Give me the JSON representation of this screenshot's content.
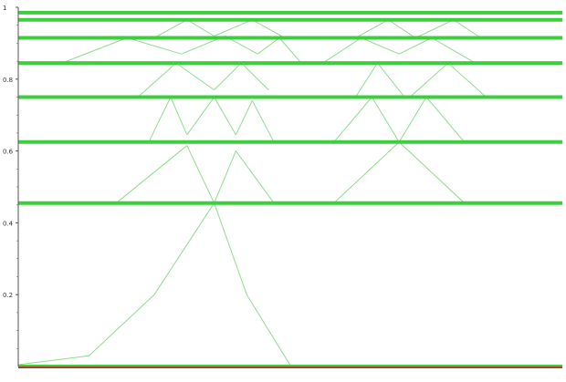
{
  "chart_data": {
    "type": "line",
    "title": "",
    "xlabel": "",
    "ylabel": "",
    "ylim": [
      0,
      1
    ],
    "xlim": [
      0,
      1
    ],
    "y_ticks": [
      {
        "value": 1,
        "label": "1"
      },
      {
        "value": 0.8,
        "label": "0.8"
      },
      {
        "value": 0.6,
        "label": "0.6"
      },
      {
        "value": 0.4,
        "label": "0.4"
      },
      {
        "value": 0.2,
        "label": "0.2"
      }
    ],
    "grid": false,
    "legend": "none",
    "colors": {
      "plateau": "#3ccf3c",
      "curve": "#8fdc8f",
      "baseline": "#b43c28",
      "axis": "#555555"
    },
    "plateau_levels": [
      0.455,
      0.625,
      0.75,
      0.845,
      0.915,
      0.965,
      0.985
    ],
    "peak_series": [
      {
        "points": [
          [
            0,
            0.005
          ],
          [
            0.13,
            0.03
          ],
          [
            0.25,
            0.2
          ],
          [
            0.36,
            0.455
          ],
          [
            0.42,
            0.2
          ],
          [
            0.5,
            0.003
          ],
          [
            1,
            0.003
          ]
        ]
      },
      {
        "points": [
          [
            0.18,
            0.455
          ],
          [
            0.31,
            0.615
          ],
          [
            0.36,
            0.455
          ]
        ]
      },
      {
        "points": [
          [
            0.36,
            0.455
          ],
          [
            0.4,
            0.6
          ],
          [
            0.47,
            0.455
          ]
        ]
      },
      {
        "points": [
          [
            0.58,
            0.455
          ],
          [
            0.7,
            0.625
          ],
          [
            0.82,
            0.455
          ]
        ]
      },
      {
        "points": [
          [
            0.24,
            0.625
          ],
          [
            0.28,
            0.75
          ],
          [
            0.31,
            0.645
          ]
        ]
      },
      {
        "points": [
          [
            0.31,
            0.645
          ],
          [
            0.36,
            0.75
          ],
          [
            0.4,
            0.645
          ]
        ]
      },
      {
        "points": [
          [
            0.4,
            0.645
          ],
          [
            0.43,
            0.74
          ],
          [
            0.47,
            0.625
          ]
        ]
      },
      {
        "points": [
          [
            0.58,
            0.625
          ],
          [
            0.65,
            0.75
          ],
          [
            0.7,
            0.625
          ]
        ]
      },
      {
        "points": [
          [
            0.7,
            0.625
          ],
          [
            0.75,
            0.75
          ],
          [
            0.82,
            0.625
          ]
        ]
      },
      {
        "points": [
          [
            0.22,
            0.75
          ],
          [
            0.29,
            0.845
          ],
          [
            0.36,
            0.77
          ]
        ]
      },
      {
        "points": [
          [
            0.36,
            0.77
          ],
          [
            0.41,
            0.845
          ],
          [
            0.46,
            0.77
          ]
        ]
      },
      {
        "points": [
          [
            0.62,
            0.75
          ],
          [
            0.66,
            0.845
          ],
          [
            0.71,
            0.75
          ]
        ]
      },
      {
        "points": [
          [
            0.72,
            0.75
          ],
          [
            0.79,
            0.845
          ],
          [
            0.86,
            0.75
          ]
        ]
      },
      {
        "points": [
          [
            0.08,
            0.845
          ],
          [
            0.2,
            0.915
          ],
          [
            0.3,
            0.87
          ]
        ]
      },
      {
        "points": [
          [
            0.3,
            0.87
          ],
          [
            0.38,
            0.92
          ],
          [
            0.44,
            0.87
          ]
        ]
      },
      {
        "points": [
          [
            0.44,
            0.87
          ],
          [
            0.48,
            0.915
          ],
          [
            0.52,
            0.845
          ]
        ]
      },
      {
        "points": [
          [
            0.56,
            0.845
          ],
          [
            0.63,
            0.915
          ],
          [
            0.7,
            0.87
          ]
        ]
      },
      {
        "points": [
          [
            0.7,
            0.87
          ],
          [
            0.76,
            0.915
          ],
          [
            0.84,
            0.845
          ]
        ]
      },
      {
        "points": [
          [
            0.25,
            0.915
          ],
          [
            0.31,
            0.965
          ],
          [
            0.36,
            0.92
          ]
        ]
      },
      {
        "points": [
          [
            0.36,
            0.92
          ],
          [
            0.43,
            0.965
          ],
          [
            0.49,
            0.915
          ]
        ]
      },
      {
        "points": [
          [
            0.62,
            0.915
          ],
          [
            0.68,
            0.965
          ],
          [
            0.73,
            0.915
          ]
        ]
      },
      {
        "points": [
          [
            0.73,
            0.915
          ],
          [
            0.8,
            0.965
          ],
          [
            0.85,
            0.915
          ]
        ]
      }
    ],
    "baseline_value": 0
  }
}
